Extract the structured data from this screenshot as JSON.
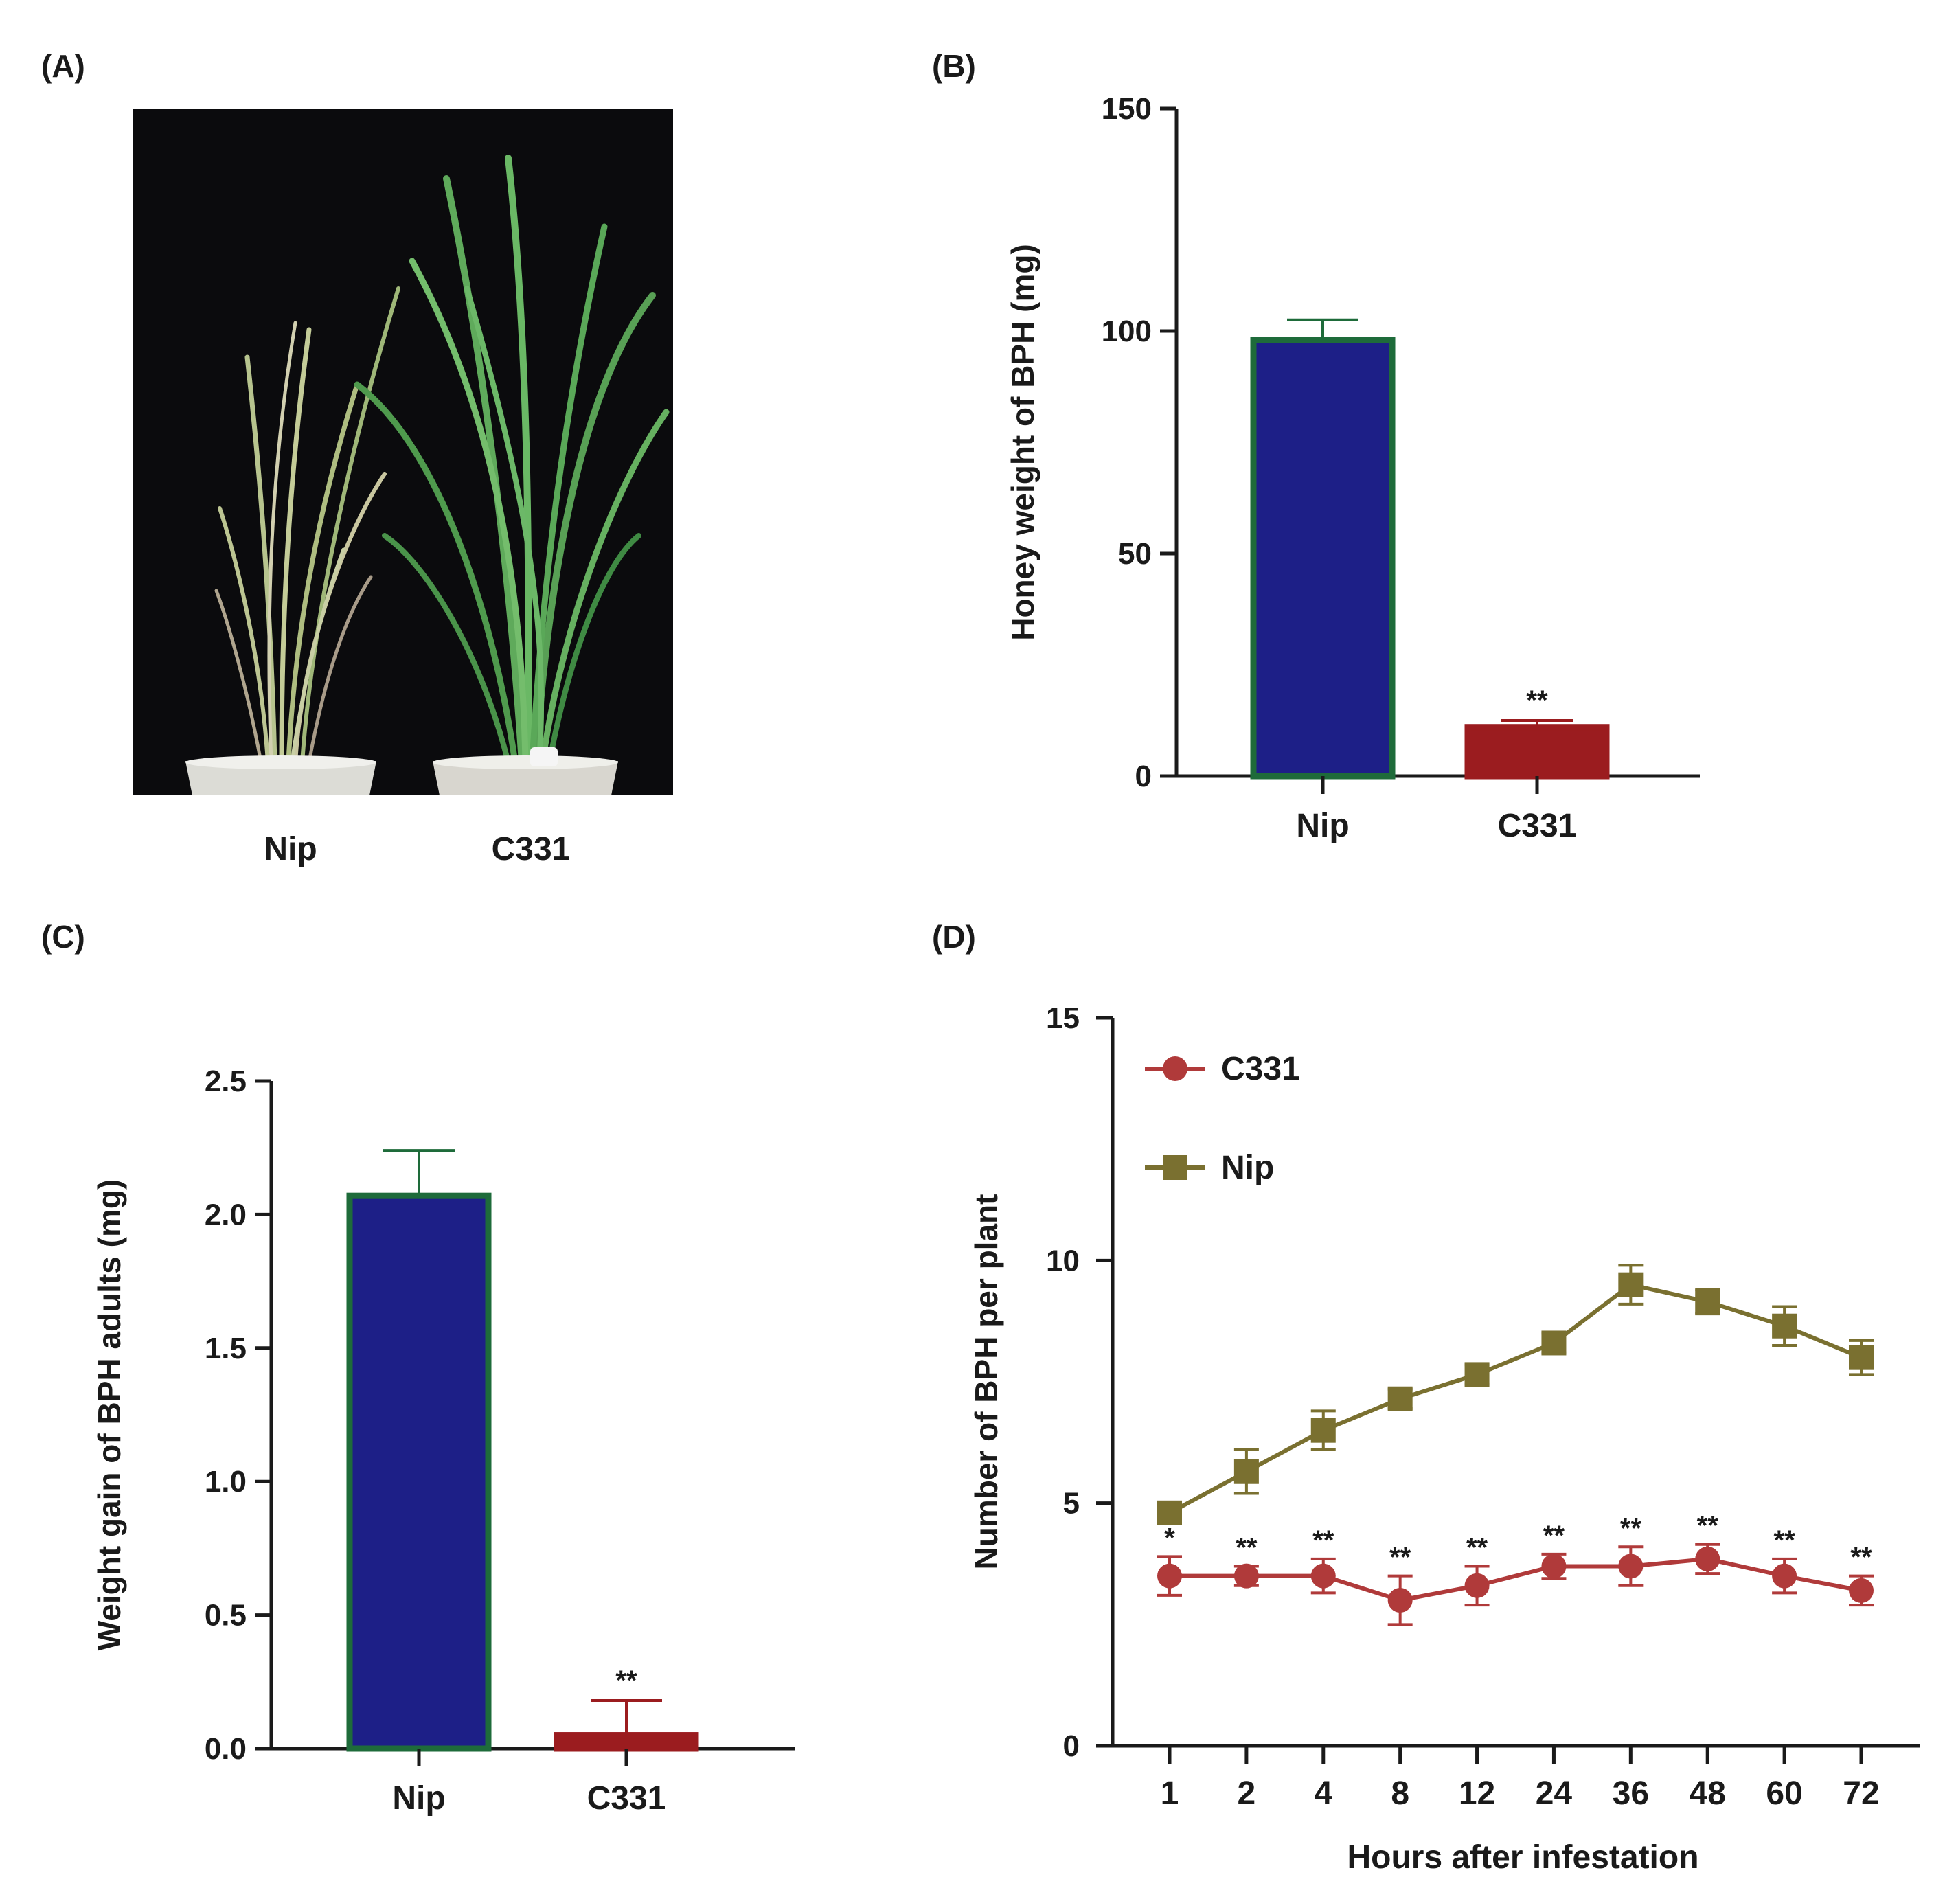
{
  "panels": {
    "A": {
      "label": "(A)",
      "categories": [
        "Nip",
        "C331"
      ],
      "photo_description": "rice-plants-photo"
    }
  },
  "chart_data": [
    {
      "id": "B",
      "panel_label": "(B)",
      "type": "bar",
      "categories": [
        "Nip",
        "C331"
      ],
      "values": [
        98,
        11
      ],
      "errors": [
        4.5,
        1.5
      ],
      "significance": [
        "",
        "**"
      ],
      "colors": [
        "#1d1f87",
        "#9b1c1f"
      ],
      "edge_colors": [
        "#1e6b3a",
        "#9b1c1f"
      ],
      "xlabel": "",
      "ylabel": "Honey weight of BPH (mg)",
      "ylim": [
        0,
        150
      ],
      "yticks": [
        0,
        50,
        100,
        150
      ],
      "ytick_labels": [
        "0",
        "50",
        "100",
        "150"
      ]
    },
    {
      "id": "C",
      "panel_label": "(C)",
      "type": "bar",
      "categories": [
        "Nip",
        "C331"
      ],
      "values": [
        2.07,
        0.05
      ],
      "errors": [
        0.17,
        0.13
      ],
      "significance": [
        "",
        "**"
      ],
      "colors": [
        "#1d1f87",
        "#9b1c1f"
      ],
      "edge_colors": [
        "#1e6b3a",
        "#9b1c1f"
      ],
      "xlabel": "",
      "ylabel": "Weight gain of BPH adults (mg)",
      "ylim": [
        0,
        2.5
      ],
      "yticks": [
        0,
        0.5,
        1.0,
        1.5,
        2.0,
        2.5
      ],
      "ytick_labels": [
        "0.0",
        "0.5",
        "1.0",
        "1.5",
        "2.0",
        "2.5"
      ]
    },
    {
      "id": "D",
      "panel_label": "(D)",
      "type": "line",
      "categories": [
        "1",
        "2",
        "4",
        "8",
        "12",
        "24",
        "36",
        "48",
        "60",
        "72"
      ],
      "series": [
        {
          "name": "C331",
          "marker": "circle",
          "color": "#b03a3a",
          "values": [
            3.5,
            3.5,
            3.5,
            3.0,
            3.3,
            3.7,
            3.7,
            3.85,
            3.5,
            3.2
          ],
          "errors": [
            0.4,
            0.2,
            0.35,
            0.5,
            0.4,
            0.25,
            0.4,
            0.3,
            0.35,
            0.3
          ],
          "significance": [
            "*",
            "**",
            "**",
            "**",
            "**",
            "**",
            "**",
            "**",
            "**",
            "**"
          ]
        },
        {
          "name": "Nip",
          "marker": "square",
          "color": "#7a7030",
          "values": [
            4.8,
            5.65,
            6.5,
            7.15,
            7.65,
            8.3,
            9.5,
            9.15,
            8.65,
            8.0
          ],
          "errors": [
            0.2,
            0.45,
            0.4,
            0.2,
            0.2,
            0.2,
            0.4,
            0.25,
            0.4,
            0.35
          ]
        }
      ],
      "xlabel": "Hours after infestation",
      "ylabel": "Number of BPH per plant",
      "ylim": [
        0,
        15
      ],
      "yticks": [
        0,
        5,
        10,
        15
      ],
      "ytick_labels": [
        "0",
        "5",
        "10",
        "15"
      ]
    }
  ]
}
